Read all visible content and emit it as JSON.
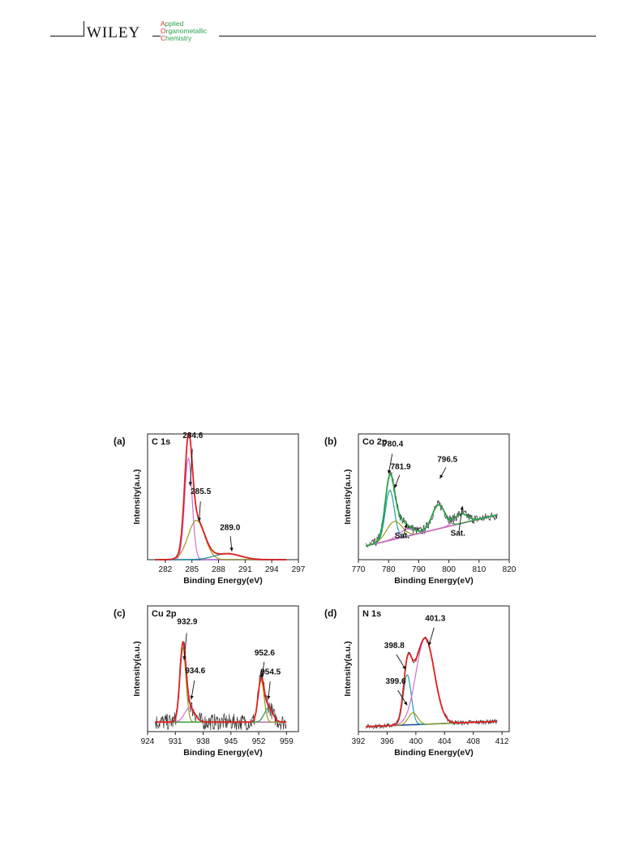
{
  "header": {
    "publisher": "WILEY",
    "journal_lines": [
      {
        "cap": "A",
        "rest": "pplied"
      },
      {
        "cap": "O",
        "rest": "rganometallic"
      },
      {
        "cap": "C",
        "rest": "hemistry"
      }
    ]
  },
  "chart_data": [
    {
      "type": "line",
      "panel_label": "(a)",
      "title": "C 1s",
      "xlabel": "Binding Energy(eV)",
      "ylabel": "Intensity(a.u.)",
      "xlim": [
        280,
        297
      ],
      "xticks": [
        282,
        285,
        288,
        291,
        294,
        297
      ],
      "peaks": [
        {
          "label": "284.6",
          "center": 284.6,
          "fwhm": 1.0,
          "height": 0.85,
          "color": "#d66bd6"
        },
        {
          "label": "285.5",
          "center": 285.5,
          "fwhm": 2.2,
          "height": 0.33,
          "color": "#9a9a20"
        },
        {
          "label": "289.0",
          "center": 289.0,
          "fwhm": 3.5,
          "height": 0.05,
          "color": "#1f8f8f"
        }
      ],
      "baseline": [
        0.0,
        0.0
      ],
      "envelope_color": "#e02020",
      "background_color": "#1d4fa0",
      "noise": 0.005,
      "annotations": [
        {
          "text": "284.6",
          "tx": 285.1,
          "ty": 1.02,
          "ax": 284.8,
          "ay": 0.62
        },
        {
          "text": "285.5",
          "tx": 286.0,
          "ty": 0.55,
          "ax": 285.8,
          "ay": 0.32
        },
        {
          "text": "289.0",
          "tx": 289.3,
          "ty": 0.25,
          "ax": 289.5,
          "ay": 0.07
        }
      ]
    },
    {
      "type": "line",
      "panel_label": "(b)",
      "title": "Co 2p",
      "xlabel": "Binding Energy(eV)",
      "ylabel": "Intensity(a.u.)",
      "xlim": [
        770,
        820
      ],
      "xticks": [
        770,
        780,
        790,
        800,
        810,
        820
      ],
      "peaks": [
        {
          "label": "780.4",
          "center": 780.4,
          "fwhm": 3.5,
          "height": 0.42,
          "color": "#1f9f9f"
        },
        {
          "label": "781.9",
          "center": 781.9,
          "fwhm": 6.0,
          "height": 0.15,
          "color": "#9a9a20"
        },
        {
          "label": "Sat.",
          "center": 786.0,
          "fwhm": 6.0,
          "height": 0.06,
          "color": "#d66bd6"
        },
        {
          "label": "796.5",
          "center": 796.5,
          "fwhm": 5.0,
          "height": 0.2,
          "color": "#2aa14a"
        },
        {
          "label": "Sat.",
          "center": 804.0,
          "fwhm": 5.0,
          "height": 0.08,
          "color": "#d66bd6"
        }
      ],
      "baseline": [
        0.1,
        0.4
      ],
      "envelope_color": "#2aa14a",
      "background_color": "#a01010",
      "noise": 0.04,
      "annotations": [
        {
          "text": "780.4",
          "tx": 781.5,
          "ty": 0.95,
          "ax": 780.0,
          "ay": 0.72
        },
        {
          "text": "781.9",
          "tx": 784.0,
          "ty": 0.76,
          "ax": 782.0,
          "ay": 0.6
        },
        {
          "text": "796.5",
          "tx": 799.5,
          "ty": 0.82,
          "ax": 797.0,
          "ay": 0.68
        },
        {
          "text": "Sat.",
          "tx": 784.5,
          "ty": 0.18,
          "ax": 786.0,
          "ay": 0.3
        },
        {
          "text": "Sat.",
          "tx": 803.0,
          "ty": 0.2,
          "ax": 804.5,
          "ay": 0.45
        }
      ]
    },
    {
      "type": "line",
      "panel_label": "(c)",
      "title": "Cu 2p",
      "xlabel": "Binding Energy(eV)",
      "ylabel": "Intensity(a.u.)",
      "xlim": [
        924,
        962
      ],
      "xticks": [
        924,
        931,
        938,
        945,
        952,
        959
      ],
      "peaks": [
        {
          "label": "932.9",
          "center": 932.9,
          "fwhm": 1.8,
          "height": 0.62,
          "color": "#9a9a20"
        },
        {
          "label": "934.6",
          "center": 934.6,
          "fwhm": 3.0,
          "height": 0.12,
          "color": "#d66bd6"
        },
        {
          "label": "952.6",
          "center": 952.6,
          "fwhm": 1.8,
          "height": 0.35,
          "color": "#9a9a20"
        },
        {
          "label": "954.5",
          "center": 954.5,
          "fwhm": 2.5,
          "height": 0.12,
          "color": "#2aa14a"
        }
      ],
      "baseline": [
        0.08,
        0.08
      ],
      "envelope_color": "#e02020",
      "background_color": "#2aa14a",
      "noise": 0.07,
      "annotations": [
        {
          "text": "932.9",
          "tx": 934.0,
          "ty": 0.9,
          "ax": 933.2,
          "ay": 0.6
        },
        {
          "text": "934.6",
          "tx": 936.0,
          "ty": 0.49,
          "ax": 935.0,
          "ay": 0.27
        },
        {
          "text": "952.6",
          "tx": 953.5,
          "ty": 0.64,
          "ax": 952.8,
          "ay": 0.45
        },
        {
          "text": "954.5",
          "tx": 955.0,
          "ty": 0.48,
          "ax": 954.4,
          "ay": 0.27
        }
      ]
    },
    {
      "type": "line",
      "panel_label": "(d)",
      "title": "N 1s",
      "xlabel": "Binding Energy(eV)",
      "ylabel": "Intensity(a.u.)",
      "xlim": [
        392,
        413
      ],
      "xticks": [
        392,
        396,
        400,
        404,
        408,
        412
      ],
      "peaks": [
        {
          "label": "398.8",
          "center": 398.8,
          "fwhm": 1.3,
          "height": 0.42,
          "color": "#1f9f9f"
        },
        {
          "label": "399.6",
          "center": 399.6,
          "fwhm": 1.5,
          "height": 0.1,
          "color": "#9a9a20"
        },
        {
          "label": "401.3",
          "center": 401.3,
          "fwhm": 3.0,
          "height": 0.72,
          "color": "#d66bd6"
        }
      ],
      "baseline": [
        0.04,
        0.09
      ],
      "envelope_color": "#e02020",
      "background_color": "#1d4fa0",
      "noise": 0.02,
      "annotations": [
        {
          "text": "401.3",
          "tx": 402.7,
          "ty": 0.93,
          "ax": 401.8,
          "ay": 0.72
        },
        {
          "text": "398.8",
          "tx": 397.0,
          "ty": 0.7,
          "ax": 398.6,
          "ay": 0.52
        },
        {
          "text": "399.6",
          "tx": 397.2,
          "ty": 0.4,
          "ax": 398.8,
          "ay": 0.22
        }
      ]
    }
  ]
}
